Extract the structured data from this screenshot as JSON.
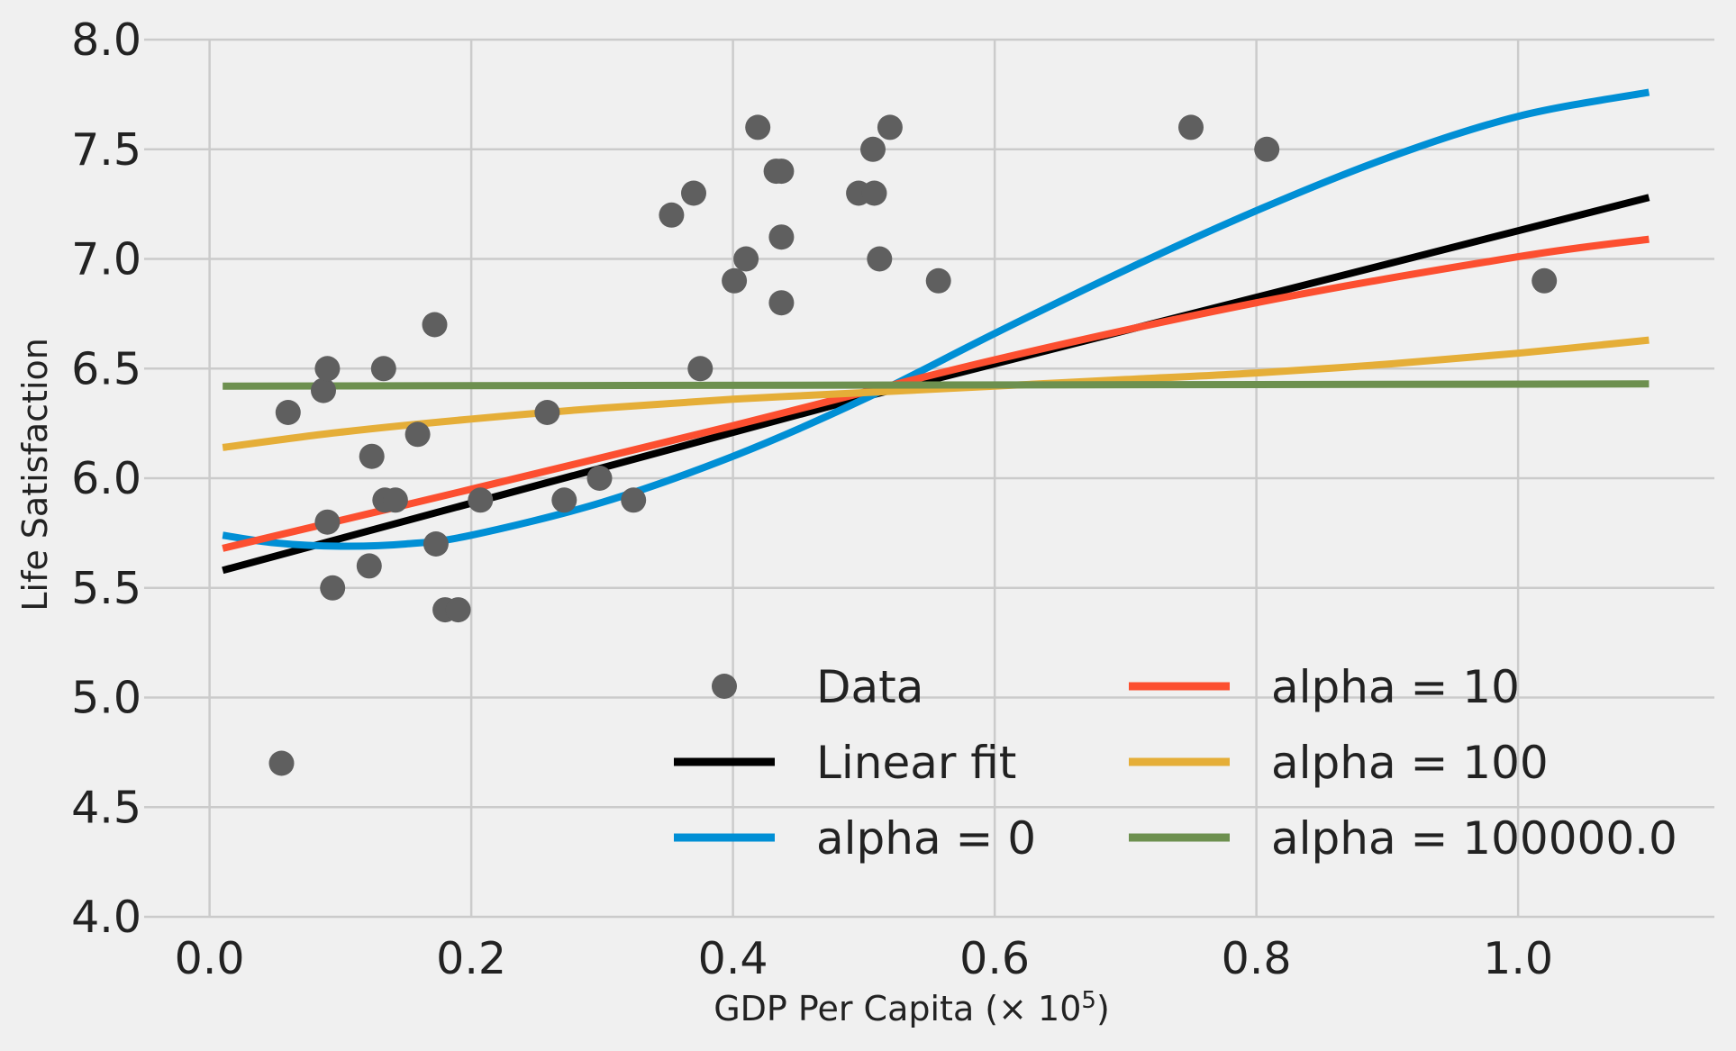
{
  "chart_data": {
    "type": "scatter",
    "title": "",
    "xlabel": "GDP Per Capita (× 10",
    "xlabel_exponent": "5",
    "xlabel_close": ")",
    "ylabel": "Life Satisfaction",
    "xlim": [
      -0.05,
      1.15
    ],
    "ylim": [
      4.0,
      8.0
    ],
    "x_ticks": [
      0.0,
      0.2,
      0.4,
      0.6,
      0.8,
      1.0
    ],
    "x_tick_labels": [
      "0.0",
      "0.2",
      "0.4",
      "0.6",
      "0.8",
      "1.0"
    ],
    "y_ticks": [
      4.0,
      4.5,
      5.0,
      5.5,
      6.0,
      6.5,
      7.0,
      7.5,
      8.0
    ],
    "y_tick_labels": [
      "4.0",
      "4.5",
      "5.0",
      "5.5",
      "6.0",
      "6.5",
      "7.0",
      "7.5",
      "8.0"
    ],
    "grid": true,
    "legend_position": "bottom-center",
    "legend_columns": 2,
    "scatter": {
      "name": "Data",
      "color": "#5f5f5f",
      "points": [
        [
          0.055,
          4.7
        ],
        [
          0.06,
          6.3
        ],
        [
          0.087,
          6.4
        ],
        [
          0.09,
          6.5
        ],
        [
          0.09,
          5.8
        ],
        [
          0.094,
          5.5
        ],
        [
          0.122,
          5.6
        ],
        [
          0.124,
          6.1
        ],
        [
          0.133,
          6.5
        ],
        [
          0.134,
          5.9
        ],
        [
          0.142,
          5.9
        ],
        [
          0.159,
          6.2
        ],
        [
          0.172,
          6.7
        ],
        [
          0.173,
          5.7
        ],
        [
          0.18,
          5.4
        ],
        [
          0.19,
          5.4
        ],
        [
          0.207,
          5.9
        ],
        [
          0.258,
          6.3
        ],
        [
          0.271,
          5.9
        ],
        [
          0.298,
          6.0
        ],
        [
          0.324,
          5.9
        ],
        [
          0.353,
          7.2
        ],
        [
          0.37,
          7.3
        ],
        [
          0.375,
          6.5
        ],
        [
          0.401,
          6.9
        ],
        [
          0.41,
          7.0
        ],
        [
          0.419,
          7.6
        ],
        [
          0.433,
          7.4
        ],
        [
          0.437,
          7.4
        ],
        [
          0.437,
          7.1
        ],
        [
          0.437,
          6.8
        ],
        [
          0.496,
          7.3
        ],
        [
          0.507,
          7.5
        ],
        [
          0.508,
          7.3
        ],
        [
          0.512,
          7.0
        ],
        [
          0.52,
          7.6
        ],
        [
          0.557,
          6.9
        ],
        [
          0.75,
          7.6
        ],
        [
          0.808,
          7.5
        ],
        [
          1.02,
          6.9
        ]
      ]
    },
    "series": [
      {
        "name": "Linear fit",
        "color": "#000000",
        "x": [
          0.01,
          0.5,
          1.1
        ],
        "y": [
          5.58,
          6.37,
          7.28
        ]
      },
      {
        "name": "alpha = 0",
        "color": "#008fd5",
        "x": [
          0.01,
          0.05,
          0.1,
          0.15,
          0.2,
          0.3,
          0.4,
          0.5,
          0.6,
          0.7,
          0.8,
          0.9,
          1.0,
          1.1
        ],
        "y": [
          5.74,
          5.705,
          5.69,
          5.7,
          5.74,
          5.89,
          6.1,
          6.36,
          6.66,
          6.95,
          7.22,
          7.46,
          7.65,
          7.76
        ]
      },
      {
        "name": "alpha = 10",
        "color": "#fc4f30",
        "x": [
          0.01,
          0.2,
          0.4,
          0.6,
          0.8,
          1.0,
          1.1
        ],
        "y": [
          5.68,
          5.95,
          6.24,
          6.54,
          6.8,
          7.01,
          7.09
        ]
      },
      {
        "name": "alpha = 100",
        "color": "#e5ae38",
        "x": [
          0.01,
          0.1,
          0.2,
          0.3,
          0.4,
          0.5,
          0.6,
          0.7,
          0.8,
          0.9,
          1.0,
          1.1
        ],
        "y": [
          6.14,
          6.21,
          6.27,
          6.32,
          6.36,
          6.39,
          6.42,
          6.45,
          6.48,
          6.52,
          6.57,
          6.63
        ]
      },
      {
        "name": "alpha = 100000.0",
        "color": "#6d904f",
        "x": [
          0.01,
          1.1
        ],
        "y": [
          6.42,
          6.43
        ]
      }
    ]
  }
}
